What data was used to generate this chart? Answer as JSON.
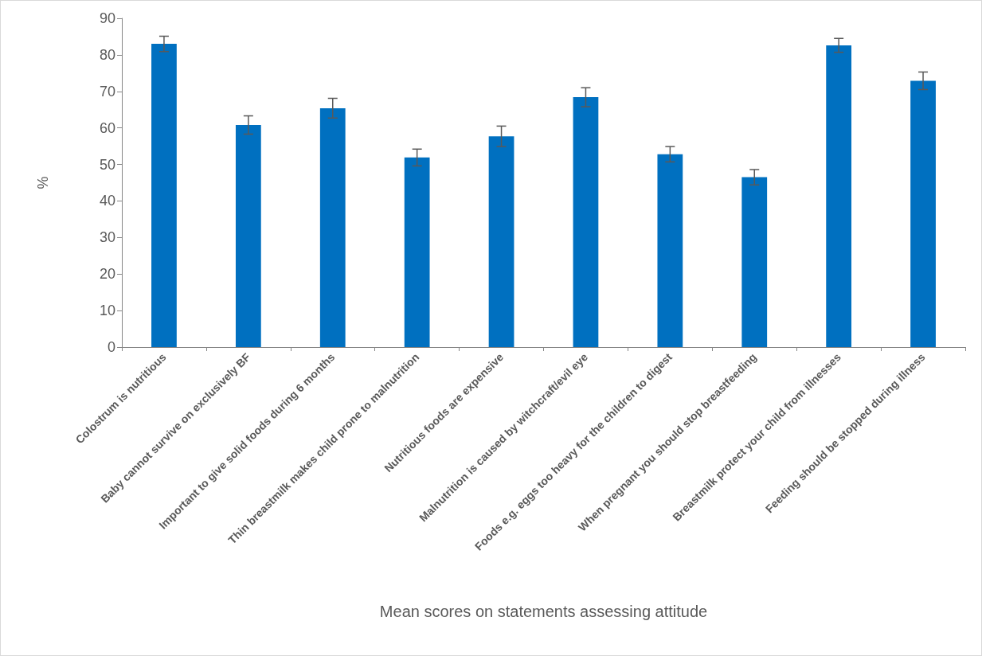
{
  "chart_data": {
    "type": "bar",
    "xlabel": "Mean scores on statements assessing attitude",
    "ylabel": "%",
    "categories": [
      "Colostrum is nutritious",
      "Baby cannot survive on exclusively BF",
      "Important to give solid foods during 6 months",
      "Thin breastmilk makes child prone to malnutrition",
      "Nutritious foods are expensive",
      "Malnutrition is caused by witchcraft/evil eye",
      "Foods e.g. eggs too heavy for the children to digest",
      "When pregnant you should stop breastfeeding",
      "Breastmilk protect your child from illnesses",
      "Feeding should be stopped during illness"
    ],
    "values": [
      83.0,
      60.8,
      65.4,
      51.9,
      57.7,
      68.4,
      52.8,
      46.5,
      82.6,
      72.9
    ],
    "errors": [
      2.1,
      2.5,
      2.7,
      2.3,
      2.8,
      2.6,
      2.1,
      2.1,
      1.9,
      2.4
    ],
    "color": "#0070c0",
    "ylim": [
      0,
      90
    ],
    "yticks": [
      0,
      10,
      20,
      30,
      40,
      50,
      60,
      70,
      80,
      90
    ],
    "grid": false
  }
}
